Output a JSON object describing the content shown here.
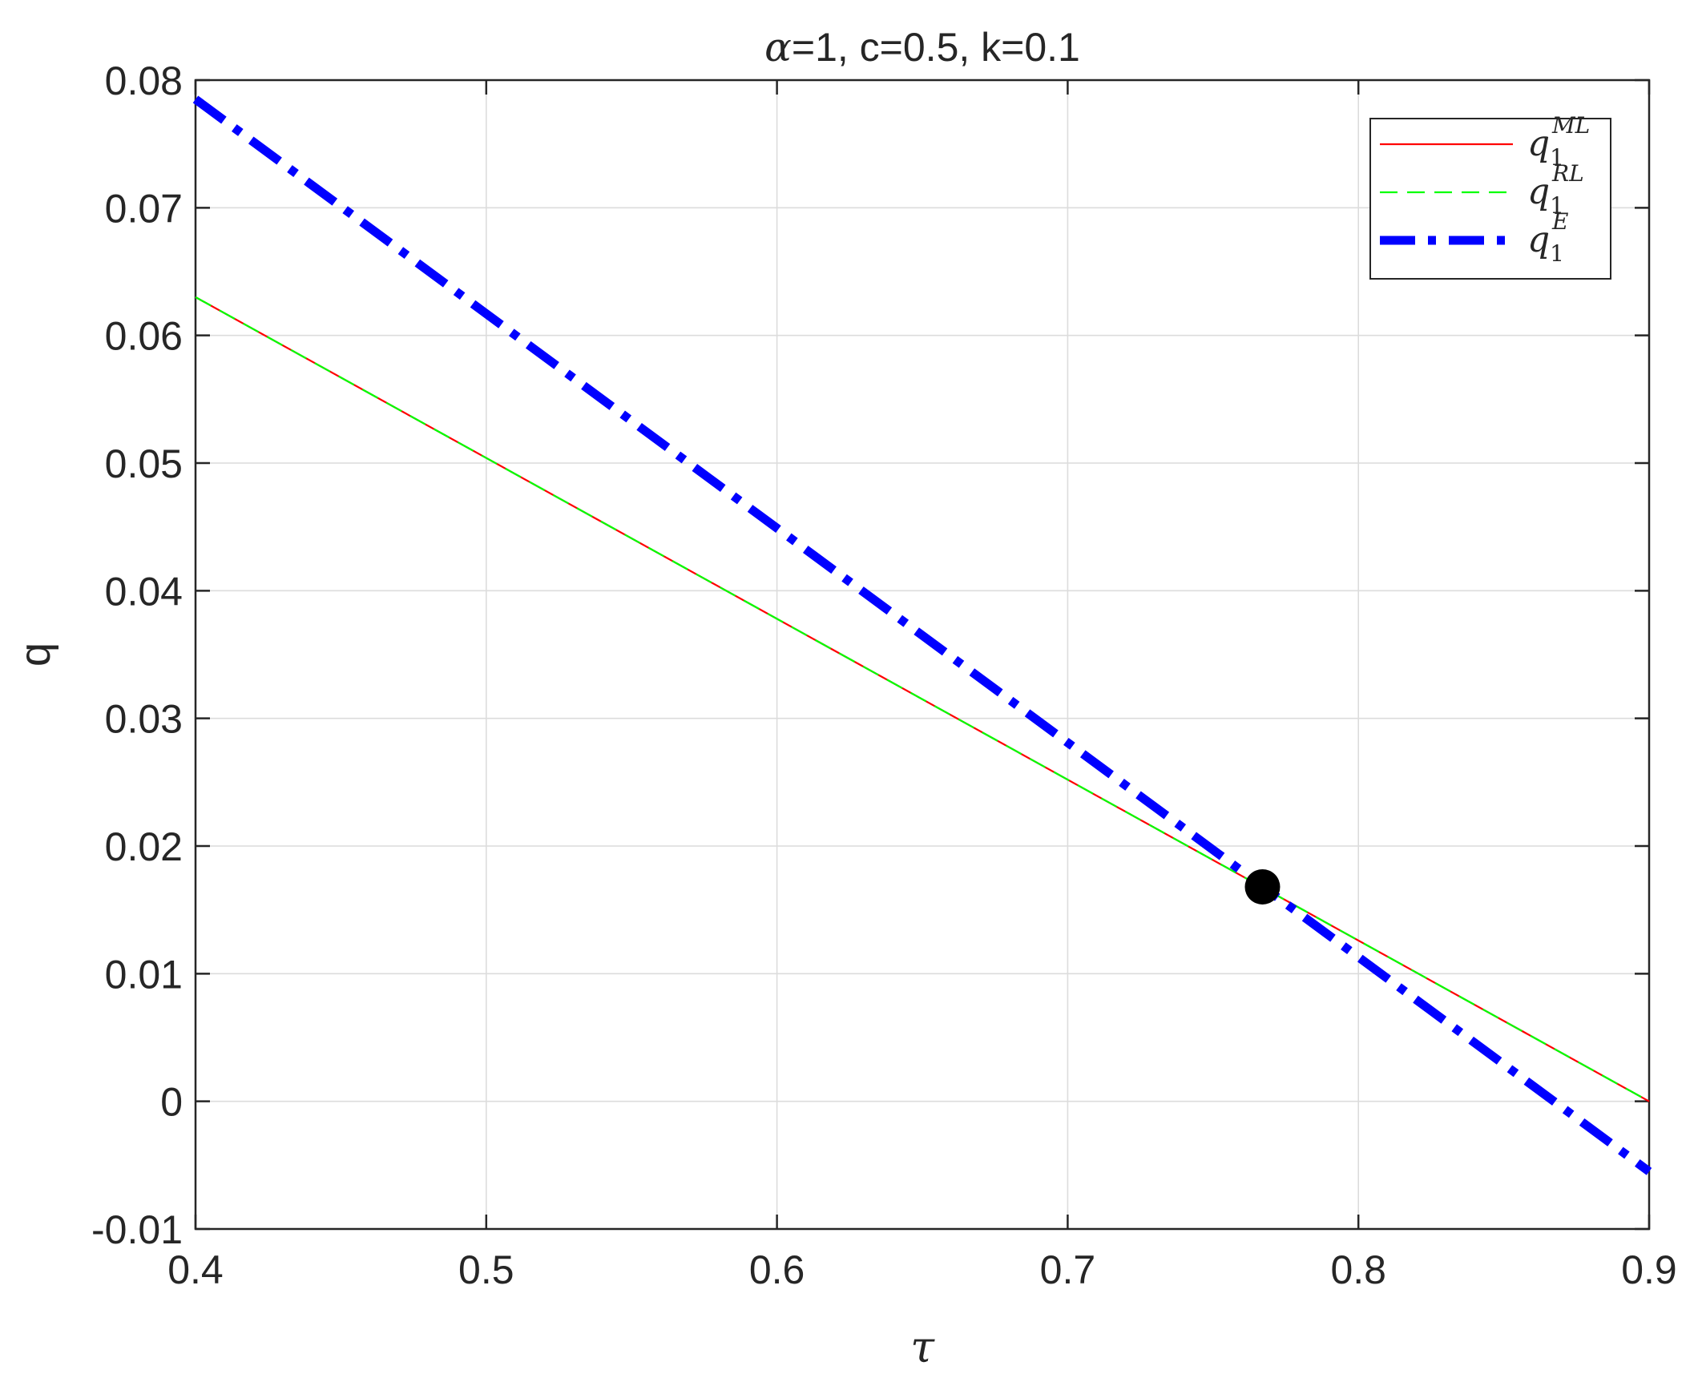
{
  "chart_data": {
    "type": "line",
    "title": {
      "greek": "α",
      "rest": "=1, c=0.5, k=0.1"
    },
    "xlabel": "τ",
    "ylabel": "q",
    "xlim": [
      0.4,
      0.9
    ],
    "ylim": [
      -0.01,
      0.08
    ],
    "xticks": [
      0.4,
      0.5,
      0.6,
      0.7,
      0.8,
      0.9
    ],
    "xtick_labels": [
      "0.4",
      "0.5",
      "0.6",
      "0.7",
      "0.8",
      "0.9"
    ],
    "yticks": [
      -0.01,
      0,
      0.01,
      0.02,
      0.03,
      0.04,
      0.05,
      0.06,
      0.07,
      0.08
    ],
    "ytick_labels": [
      "-0.01",
      "0",
      "0.01",
      "0.02",
      "0.03",
      "0.04",
      "0.05",
      "0.06",
      "0.07",
      "0.08"
    ],
    "grid": true,
    "legend_position": "top-right",
    "series": [
      {
        "key": "ML",
        "base": "q",
        "sub": "1",
        "sup": "ML",
        "color": "#ff0000",
        "style": "solid",
        "x": [
          0.4,
          0.9
        ],
        "y": [
          0.063,
          0.0
        ]
      },
      {
        "key": "RL",
        "base": "q",
        "sub": "1",
        "sup": "RL",
        "color": "#00ff00",
        "style": "dashed",
        "x": [
          0.4,
          0.9
        ],
        "y": [
          0.063,
          0.0
        ]
      },
      {
        "key": "E",
        "base": "q",
        "sub": "1",
        "sup": "E",
        "color": "#0000ff",
        "style": "dashdot",
        "x": [
          0.4,
          0.9
        ],
        "y": [
          0.0785,
          -0.0055
        ]
      }
    ],
    "marker": {
      "x": 0.767,
      "y": 0.0168,
      "color": "#000000"
    }
  }
}
